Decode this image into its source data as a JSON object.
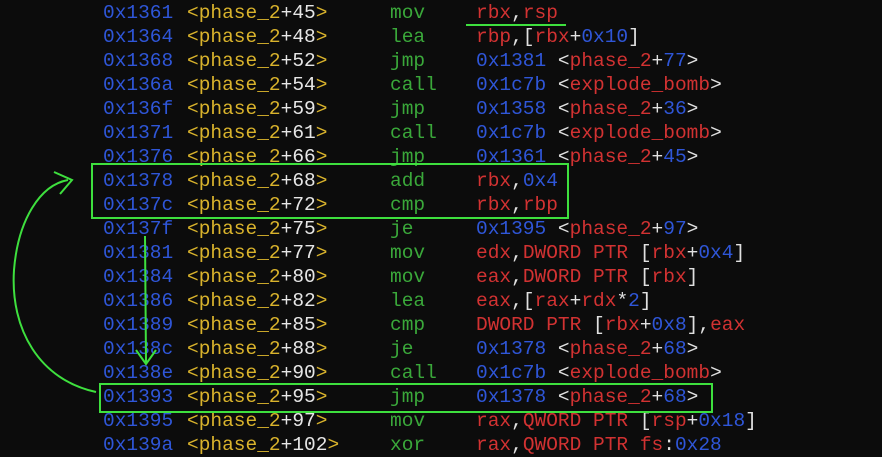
{
  "disassembly": [
    {
      "address": "0x1361",
      "symbol": "phase_2",
      "offset": "+45",
      "mnemonic": "mov",
      "operands": "rbx,rsp"
    },
    {
      "address": "0x1364",
      "symbol": "phase_2",
      "offset": "+48",
      "mnemonic": "lea",
      "operands": "rbp,[rbx+0x10]"
    },
    {
      "address": "0x1368",
      "symbol": "phase_2",
      "offset": "+52",
      "mnemonic": "jmp",
      "operands": "0x1381 <phase_2+77>"
    },
    {
      "address": "0x136a",
      "symbol": "phase_2",
      "offset": "+54",
      "mnemonic": "call",
      "operands": "0x1c7b <explode_bomb>"
    },
    {
      "address": "0x136f",
      "symbol": "phase_2",
      "offset": "+59",
      "mnemonic": "jmp",
      "operands": "0x1358 <phase_2+36>"
    },
    {
      "address": "0x1371",
      "symbol": "phase_2",
      "offset": "+61",
      "mnemonic": "call",
      "operands": "0x1c7b <explode_bomb>"
    },
    {
      "address": "0x1376",
      "symbol": "phase_2",
      "offset": "+66",
      "mnemonic": "jmp",
      "operands": "0x1361 <phase_2+45>"
    },
    {
      "address": "0x1378",
      "symbol": "phase_2",
      "offset": "+68",
      "mnemonic": "add",
      "operands": "rbx,0x4"
    },
    {
      "address": "0x137c",
      "symbol": "phase_2",
      "offset": "+72",
      "mnemonic": "cmp",
      "operands": "rbx,rbp"
    },
    {
      "address": "0x137f",
      "symbol": "phase_2",
      "offset": "+75",
      "mnemonic": "je",
      "operands": "0x1395 <phase_2+97>"
    },
    {
      "address": "0x1381",
      "symbol": "phase_2",
      "offset": "+77",
      "mnemonic": "mov",
      "operands": "edx,DWORD PTR [rbx+0x4]"
    },
    {
      "address": "0x1384",
      "symbol": "phase_2",
      "offset": "+80",
      "mnemonic": "mov",
      "operands": "eax,DWORD PTR [rbx]"
    },
    {
      "address": "0x1386",
      "symbol": "phase_2",
      "offset": "+82",
      "mnemonic": "lea",
      "operands": "eax,[rax+rdx*2]"
    },
    {
      "address": "0x1389",
      "symbol": "phase_2",
      "offset": "+85",
      "mnemonic": "cmp",
      "operands": "DWORD PTR [rbx+0x8],eax"
    },
    {
      "address": "0x138c",
      "symbol": "phase_2",
      "offset": "+88",
      "mnemonic": "je",
      "operands": "0x1378 <phase_2+68>"
    },
    {
      "address": "0x138e",
      "symbol": "phase_2",
      "offset": "+90",
      "mnemonic": "call",
      "operands": "0x1c7b <explode_bomb>"
    },
    {
      "address": "0x1393",
      "symbol": "phase_2",
      "offset": "+95",
      "mnemonic": "jmp",
      "operands": "0x1378 <phase_2+68>"
    },
    {
      "address": "0x1395",
      "symbol": "phase_2",
      "offset": "+97",
      "mnemonic": "mov",
      "operands": "rax,QWORD PTR [rsp+0x18]"
    },
    {
      "address": "0x139a",
      "symbol": "phase_2",
      "offset": "+102",
      "mnemonic": "xor",
      "operands": "rax,QWORD PTR fs:0x28"
    }
  ],
  "colors": {
    "address": "#2f56d8",
    "symbol": "#d9b32c",
    "mnemonic": "#3aa83a",
    "register": "#d23232",
    "annotation": "#3ee03e"
  }
}
